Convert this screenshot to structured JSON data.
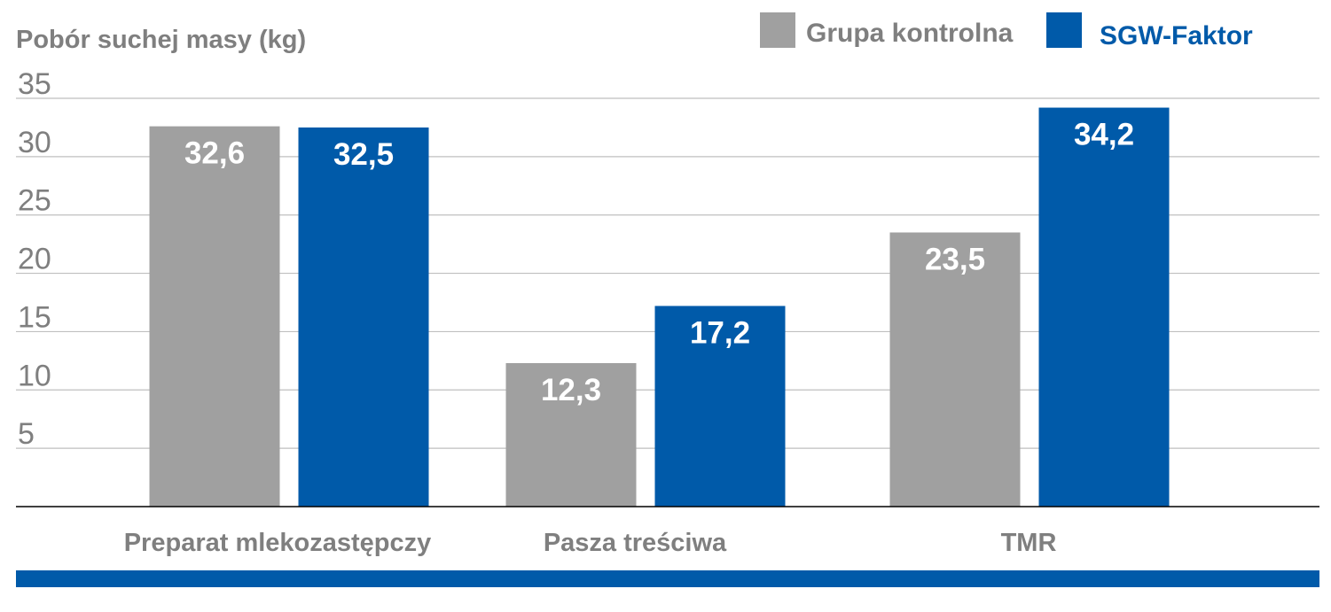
{
  "colors": {
    "control": "#a0a0a0",
    "sgw": "#005aa9",
    "axis_text": "#7f7f7f",
    "grid": "#bfbfbf",
    "bottom_band": "#005aa9"
  },
  "chart_data": {
    "type": "bar",
    "title": "",
    "ylabel": "Pobór suchej masy (kg)",
    "xlabel": "",
    "ylim": [
      0,
      35
    ],
    "yticks": [
      5,
      10,
      15,
      20,
      25,
      30,
      35
    ],
    "grid": true,
    "legend_position": "top-right",
    "categories": [
      "Preparat mlekozastępczy",
      "Pasza treściwa",
      "TMR"
    ],
    "series": [
      {
        "name": "Grupa kontrolna",
        "color": "#a0a0a0",
        "values": [
          32.6,
          12.3,
          23.5
        ],
        "labels": [
          "32,6",
          "12,3",
          "23,5"
        ]
      },
      {
        "name": "SGW-Faktor",
        "color": "#005aa9",
        "values": [
          32.5,
          17.2,
          34.2
        ],
        "labels": [
          "32,5",
          "17,2",
          "34,2"
        ]
      }
    ]
  }
}
